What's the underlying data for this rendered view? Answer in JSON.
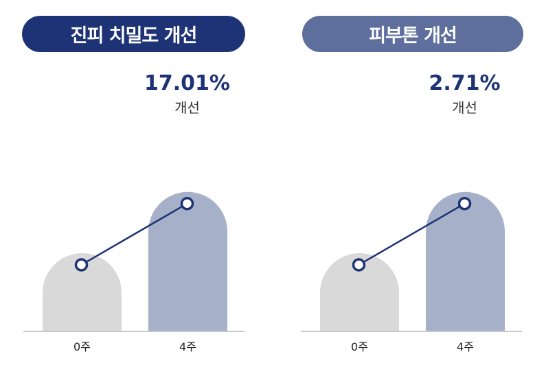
{
  "chart_data": [
    {
      "type": "bar",
      "title": "진피 치밀도 개선",
      "categories": [
        "0주",
        "4주"
      ],
      "values": [
        100,
        179
      ],
      "annotation": {
        "value": "17.01%",
        "label": "개선"
      },
      "colors": {
        "bar_0": "#d9d9d9",
        "bar_1": "#a6b0c9",
        "line": "#1e3375",
        "title_bg": "#1e3375",
        "value_text": "#1e3375",
        "axis": "#b5b5b5"
      }
    },
    {
      "type": "bar",
      "title": "피부톤 개선",
      "categories": [
        "0주",
        "4주"
      ],
      "values": [
        100,
        179
      ],
      "annotation": {
        "value": "2.71%",
        "label": "개선"
      },
      "colors": {
        "bar_0": "#d9d9d9",
        "bar_1": "#a6b0c9",
        "line": "#1e3375",
        "title_bg": "#5e6f9e",
        "value_text": "#1e3375",
        "axis": "#b5b5b5"
      }
    }
  ]
}
